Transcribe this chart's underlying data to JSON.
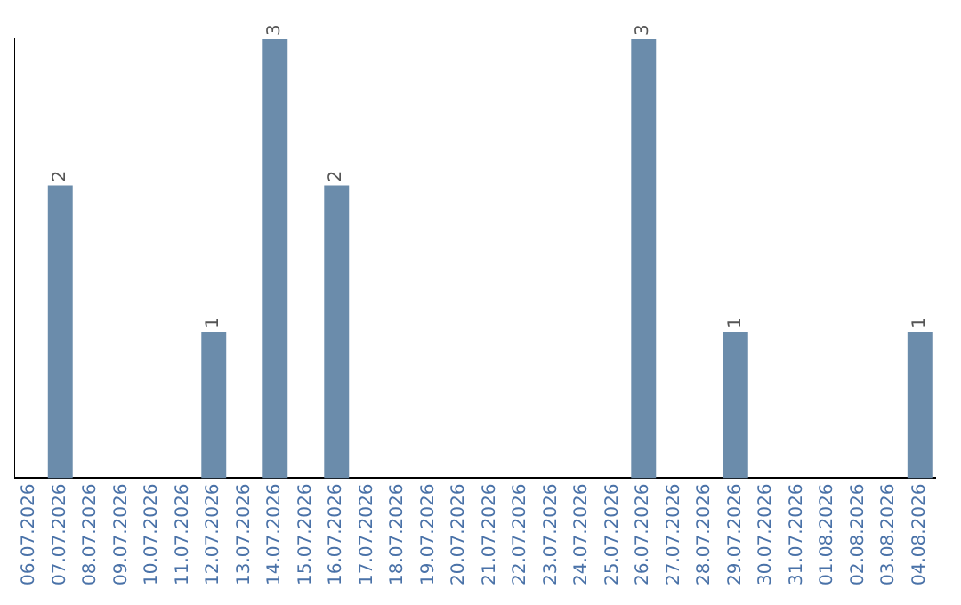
{
  "chart_data": {
    "type": "bar",
    "categories": [
      "06.07.2026",
      "07.07.2026",
      "08.07.2026",
      "09.07.2026",
      "10.07.2026",
      "11.07.2026",
      "12.07.2026",
      "13.07.2026",
      "14.07.2026",
      "15.07.2026",
      "16.07.2026",
      "17.07.2026",
      "18.07.2026",
      "19.07.2026",
      "20.07.2026",
      "21.07.2026",
      "22.07.2026",
      "23.07.2026",
      "24.07.2026",
      "25.07.2026",
      "26.07.2026",
      "27.07.2026",
      "28.07.2026",
      "29.07.2026",
      "30.07.2026",
      "31.07.2026",
      "01.08.2026",
      "02.08.2026",
      "03.08.2026",
      "04.08.2026"
    ],
    "values": [
      0,
      2,
      0,
      0,
      0,
      0,
      1,
      0,
      3,
      0,
      2,
      0,
      0,
      0,
      0,
      0,
      0,
      0,
      0,
      0,
      3,
      0,
      0,
      1,
      0,
      0,
      0,
      0,
      0,
      1
    ],
    "value_labels": [
      null,
      "2",
      null,
      null,
      null,
      null,
      "1",
      null,
      "3",
      null,
      "2",
      null,
      null,
      null,
      null,
      null,
      null,
      null,
      null,
      null,
      "3",
      null,
      null,
      "1",
      null,
      null,
      null,
      null,
      null,
      "1"
    ],
    "color": "#6b8cab",
    "grid": false,
    "legend": false,
    "tick_labels": "x"
  }
}
